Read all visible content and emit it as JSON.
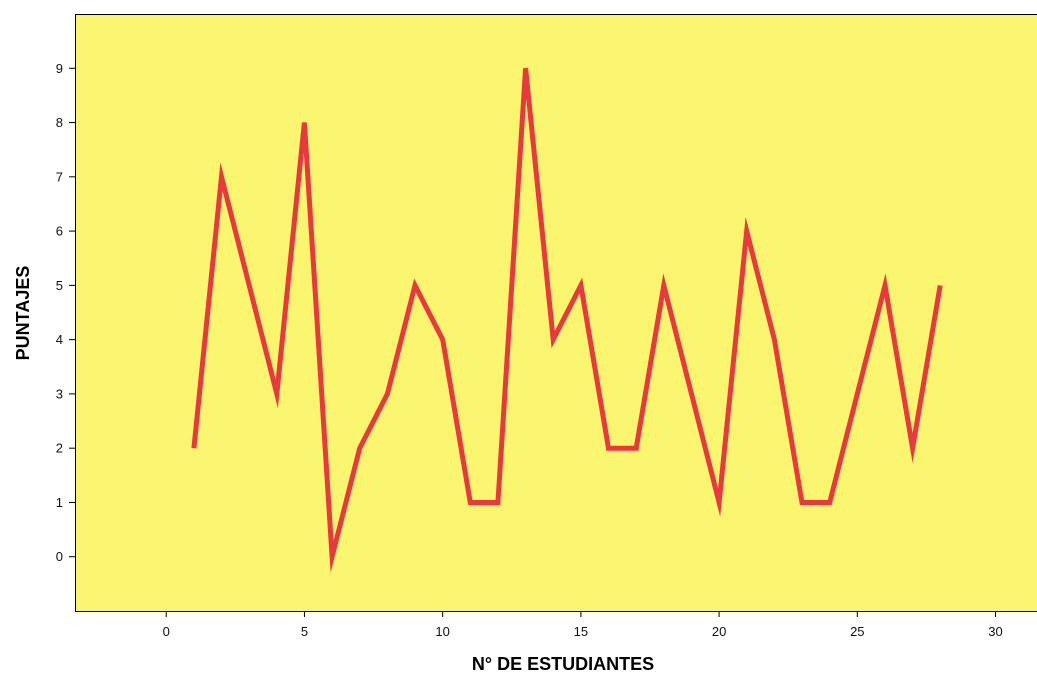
{
  "chart_data": {
    "type": "line",
    "title": "",
    "xlabel": "N° DE ESTUDIANTES",
    "ylabel": "PUNTAJES",
    "xlim": [
      -3.3,
      31.5
    ],
    "ylim": [
      -1,
      10
    ],
    "x_ticks": [
      0,
      5,
      10,
      15,
      20,
      25,
      30
    ],
    "y_ticks": [
      0,
      1,
      2,
      3,
      4,
      5,
      6,
      7,
      8,
      9
    ],
    "grid": false,
    "legend": "none",
    "colors": {
      "plot_background": "#f9f56f",
      "line": "#e8393f",
      "axis": "#000000"
    },
    "series": [
      {
        "x": [
          1,
          2,
          3,
          4,
          5,
          6,
          7,
          8,
          9,
          10,
          11,
          12,
          13,
          14,
          15,
          16,
          17,
          18,
          19,
          20,
          21,
          22,
          23,
          24,
          25,
          26,
          27,
          28
        ],
        "values": [
          2,
          7,
          5,
          3,
          8,
          0,
          2,
          3,
          5,
          4,
          1,
          1,
          9,
          4,
          5,
          2,
          2,
          5,
          3,
          1,
          6,
          4,
          1,
          1,
          3,
          5,
          2,
          5
        ]
      }
    ]
  }
}
